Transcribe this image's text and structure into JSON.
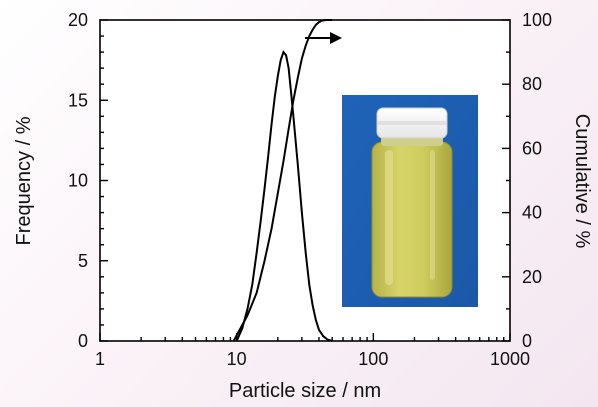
{
  "chart_data": {
    "type": "line",
    "xlabel": "Particle size / nm",
    "ylabel_left": "Frequency / %",
    "ylabel_right": "Cumulative / %",
    "x_scale": "log",
    "xlim": [
      1,
      1000
    ],
    "ylim_left": [
      0,
      20
    ],
    "ylim_right": [
      0,
      100
    ],
    "x_ticks": [
      1,
      10,
      100,
      1000
    ],
    "x_tick_labels": [
      "1",
      "10",
      "100",
      "1000"
    ],
    "y_left_ticks": [
      0,
      5,
      10,
      15,
      20
    ],
    "y_left_tick_labels": [
      "0",
      "5",
      "10",
      "15",
      "20"
    ],
    "y_right_ticks": [
      0,
      20,
      40,
      60,
      80,
      100
    ],
    "y_right_tick_labels": [
      "0",
      "20",
      "40",
      "60",
      "80",
      "100"
    ],
    "grid": false,
    "series": [
      {
        "axis": "left",
        "x": [
          10,
          11,
          12,
          13,
          14,
          15,
          16,
          17,
          18,
          19,
          20,
          21,
          22,
          23,
          24,
          25,
          26,
          28,
          30,
          32,
          34,
          36,
          38,
          40,
          43,
          46,
          50
        ],
        "y": [
          0,
          0.8,
          2,
          3.5,
          5.5,
          7.5,
          9.5,
          11.5,
          13.5,
          15.2,
          16.5,
          17.5,
          18,
          17.8,
          17,
          15.5,
          14,
          11,
          8,
          5.5,
          3.5,
          2.2,
          1.3,
          0.7,
          0.3,
          0.1,
          0
        ]
      },
      {
        "axis": "right",
        "x": [
          9.5,
          12,
          14,
          16,
          18,
          20,
          22,
          24,
          26,
          28,
          30,
          32,
          34,
          36,
          38,
          40,
          42,
          45,
          50
        ],
        "y": [
          0,
          8,
          15,
          25,
          35,
          46,
          56,
          66,
          75,
          82,
          88,
          92,
          95,
          97,
          98.5,
          99.3,
          99.8,
          100,
          100
        ]
      }
    ],
    "annotations": [
      {
        "type": "arrow",
        "direction": "right",
        "meaning": "cumulative curve uses right axis"
      },
      {
        "type": "image",
        "content": "photo of a glass vial with white cap containing yellow-green liquid on a blue background"
      }
    ]
  }
}
